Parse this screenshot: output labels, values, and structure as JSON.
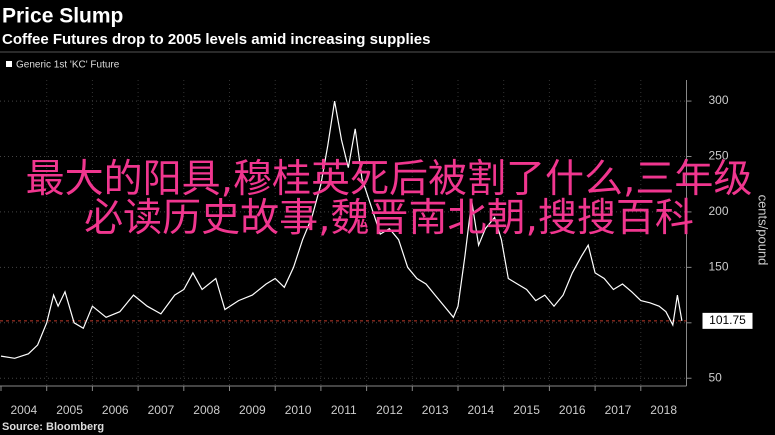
{
  "chart_data": {
    "type": "line",
    "title": "Price Slump",
    "subtitle": "Coffee Futures drop to 2005 levels amid increasing supplies",
    "y_label": "cents/pound",
    "source": "Source: Bloomberg",
    "x": [
      2004.0,
      2004.3,
      2004.6,
      2004.8,
      2005.0,
      2005.15,
      2005.25,
      2005.4,
      2005.6,
      2005.8,
      2006.0,
      2006.3,
      2006.6,
      2006.9,
      2007.2,
      2007.5,
      2007.8,
      2008.0,
      2008.2,
      2008.4,
      2008.7,
      2008.9,
      2009.2,
      2009.5,
      2009.8,
      2010.0,
      2010.2,
      2010.4,
      2010.6,
      2010.8,
      2011.0,
      2011.15,
      2011.3,
      2011.45,
      2011.6,
      2011.75,
      2011.9,
      2012.1,
      2012.3,
      2012.5,
      2012.7,
      2012.9,
      2013.1,
      2013.3,
      2013.5,
      2013.7,
      2013.9,
      2014.0,
      2014.15,
      2014.3,
      2014.45,
      2014.6,
      2014.8,
      2014.95,
      2015.1,
      2015.3,
      2015.5,
      2015.7,
      2015.9,
      2016.1,
      2016.3,
      2016.5,
      2016.7,
      2016.85,
      2017.0,
      2017.2,
      2017.4,
      2017.6,
      2017.8,
      2018.0,
      2018.2,
      2018.4,
      2018.55,
      2018.7,
      2018.8,
      2018.9
    ],
    "series": [
      {
        "name": "Generic 1st 'KC' Future",
        "color": "#ffffff",
        "values": [
          70,
          68,
          72,
          80,
          100,
          125,
          115,
          128,
          100,
          95,
          115,
          105,
          110,
          125,
          115,
          108,
          125,
          130,
          145,
          130,
          140,
          112,
          120,
          125,
          135,
          140,
          132,
          150,
          175,
          195,
          225,
          260,
          300,
          265,
          240,
          275,
          230,
          205,
          180,
          185,
          175,
          150,
          140,
          135,
          125,
          115,
          105,
          115,
          160,
          210,
          170,
          185,
          195,
          175,
          140,
          135,
          130,
          120,
          125,
          115,
          125,
          145,
          160,
          170,
          145,
          140,
          130,
          135,
          128,
          120,
          118,
          115,
          110,
          98,
          125,
          101.75
        ]
      }
    ],
    "xlim": [
      2004,
      2019
    ],
    "xticks": [
      2004,
      2005,
      2006,
      2007,
      2008,
      2009,
      2010,
      2011,
      2012,
      2013,
      2014,
      2015,
      2016,
      2017,
      2018
    ],
    "ylim": [
      43,
      319
    ],
    "yticks": [
      50,
      100,
      150,
      200,
      250,
      300
    ],
    "reference_line": 101.75,
    "reference_color": "#c0392b",
    "grid": true
  },
  "overlay": "最大的阳具,穆桂英死后被割了什么,三年级必读历史故事,魏晋南北朝,搜搜百科"
}
